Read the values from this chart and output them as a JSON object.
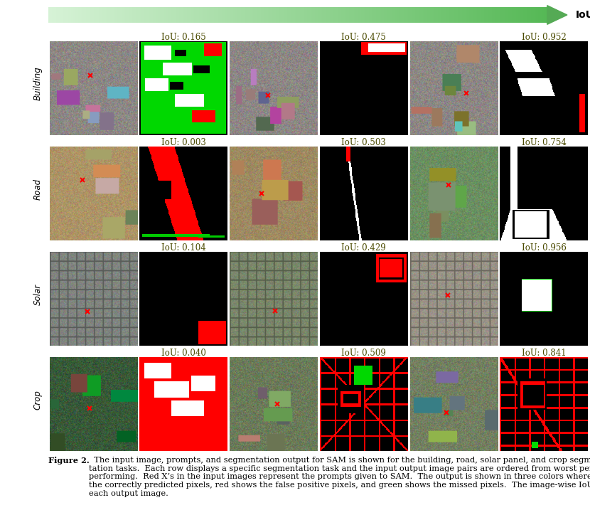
{
  "arrow_text": "IoU",
  "row_labels": [
    "Building",
    "Road",
    "Solar",
    "Crop"
  ],
  "iou_values": [
    [
      "IoU: 0.165",
      "IoU: 0.475",
      "IoU: 0.952"
    ],
    [
      "IoU: 0.003",
      "IoU: 0.503",
      "IoU: 0.754"
    ],
    [
      "IoU: 0.104",
      "IoU: 0.429",
      "IoU: 0.956"
    ],
    [
      "IoU: 0.040",
      "IoU: 0.509",
      "IoU: 0.841"
    ]
  ],
  "caption_bold": "Figure 2.",
  "caption_normal": "  The input image, prompts, and segmentation output for SAM is shown for the building, road, solar panel, and crop segmen-\ntation tasks.  Each row displays a specific segmentation task and the input output image pairs are ordered from worst performing to best\nperforming.  Red X’s in the input images represent the prompts given to SAM.  The output is shown in three colors where white represents\nthe correctly predicted pixels, red shows the false positive pixels, and green shows the missed pixels.  The image-wise IoU is shown above\neach output image.",
  "bg": "#ffffff",
  "iou_color": "#4a4a00",
  "iou_fontsize": 8.5,
  "row_label_fontsize": 8.5,
  "caption_fontsize": 8.2,
  "fig_w": 8.3,
  "fig_h": 7.24,
  "dpi": 100
}
